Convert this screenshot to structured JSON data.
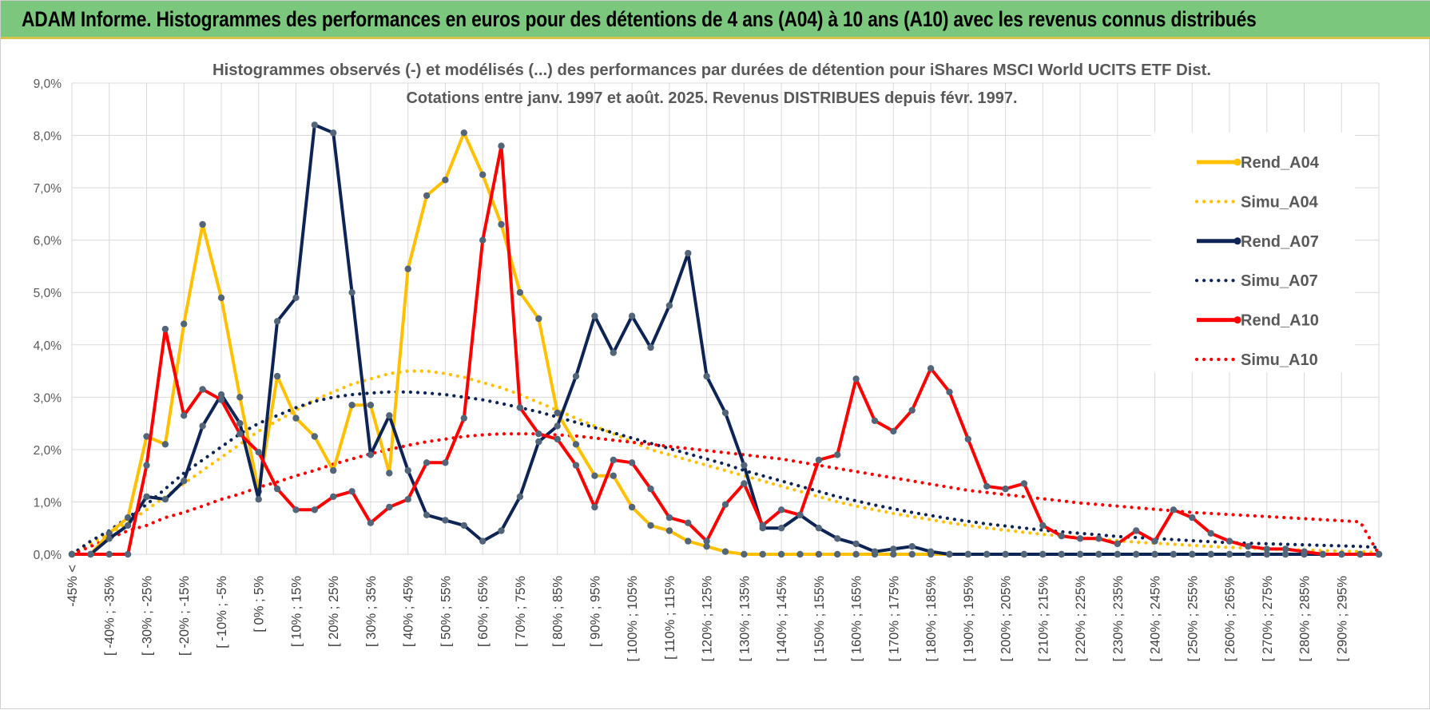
{
  "banner": {
    "title": "ADAM Informe. Histogrammes des performances en euros pour des détentions de 4 ans (A04) à 10 ans (A10) avec les revenus connus distribués"
  },
  "colors": {
    "banner_bg": "#7cc77e",
    "A04": "#ffc000",
    "A07": "#0d2454",
    "A10": "#ff0000",
    "grid": "#d9d9d9"
  },
  "chart_data": {
    "type": "line",
    "title": "Histogrammes observés (-) et modélisés (...) des performances par durées de détention pour iShares MSCI World UCITS ETF Dist.",
    "subtitle": "Cotations entre janv. 1997 et août. 2025. Revenus DISTRIBUES depuis févr. 1997.",
    "xlabel": "",
    "ylabel": "",
    "ylim": [
      0,
      9
    ],
    "yticks": [
      "0,0%",
      "1,0%",
      "2,0%",
      "3,0%",
      "4,0%",
      "5,0%",
      "6,0%",
      "7,0%",
      "8,0%",
      "9,0%"
    ],
    "grid": true,
    "legend_position": "right",
    "x_tick_labels": [
      "-45% <",
      "[ -40% ; -35%",
      "[ -30% ; -25%",
      "[ -20% ; -15%",
      "[ -10% ; -5%",
      "[ 0% ; 5%",
      "[ 10% ; 15%",
      "[ 20% ; 25%",
      "[ 30% ; 35%",
      "[ 40% ; 45%",
      "[ 50% ; 55%",
      "[ 60% ; 65%",
      "[ 70% ; 75%",
      "[ 80% ; 85%",
      "[ 90% ; 95%",
      "[ 100% ; 105%",
      "[ 110% ; 115%",
      "[ 120% ; 125%",
      "[ 130% ; 135%",
      "[ 140% ; 145%",
      "[ 150% ; 155%",
      "[ 160% ; 165%",
      "[ 170% ; 175%",
      "[ 180% ; 185%",
      "[ 190% ; 195%",
      "[ 200% ; 205%",
      "[ 210% ; 215%",
      "[ 220% ; 225%",
      "[ 230% ; 235%",
      "[ 240% ; 245%",
      "[ 250% ; 255%",
      "[ 260% ; 265%",
      "[ 270% ; 275%",
      "[ 280% ; 285%",
      "[ 290% ; 295%"
    ],
    "series": [
      {
        "name": "Rend_A04",
        "style": "solid",
        "color": "#ffc000",
        "values": [
          0.0,
          0.0,
          0.4,
          0.7,
          2.25,
          2.1,
          4.4,
          6.3,
          4.9,
          3.0,
          1.2,
          3.4,
          2.6,
          2.25,
          1.6,
          2.85,
          2.85,
          1.55,
          5.45,
          6.85,
          7.15,
          8.05,
          7.25,
          6.3,
          5.0,
          4.5,
          2.7,
          2.1,
          1.5,
          1.5,
          0.9,
          0.55,
          0.45,
          0.25,
          0.15,
          0.05,
          0,
          0,
          0,
          0,
          0,
          0,
          0,
          0,
          0,
          0,
          0,
          0,
          0,
          0,
          0,
          0,
          0,
          0,
          0,
          0,
          0,
          0,
          0,
          0,
          0,
          0,
          0,
          0,
          0,
          0,
          0,
          0,
          0,
          0,
          0
        ]
      },
      {
        "name": "Simu_A04",
        "style": "dotted",
        "color": "#ffc000",
        "values": [
          0.0,
          0.2,
          0.4,
          0.6,
          0.85,
          1.1,
          1.35,
          1.6,
          1.85,
          2.1,
          2.35,
          2.55,
          2.75,
          2.95,
          3.1,
          3.25,
          3.35,
          3.45,
          3.5,
          3.5,
          3.45,
          3.38,
          3.28,
          3.18,
          3.05,
          2.9,
          2.75,
          2.6,
          2.45,
          2.3,
          2.15,
          2.0,
          1.9,
          1.8,
          1.7,
          1.6,
          1.5,
          1.4,
          1.3,
          1.2,
          1.1,
          1.0,
          0.92,
          0.85,
          0.78,
          0.72,
          0.66,
          0.6,
          0.55,
          0.5,
          0.46,
          0.42,
          0.38,
          0.35,
          0.32,
          0.29,
          0.26,
          0.23,
          0.21,
          0.19,
          0.17,
          0.15,
          0.13,
          0.12,
          0.1,
          0.09,
          0.08,
          0.07,
          0.06,
          0.05,
          0.03
        ]
      },
      {
        "name": "Rend_A07",
        "style": "solid",
        "color": "#0d2454",
        "values": [
          0.0,
          0.0,
          0.3,
          0.55,
          1.1,
          1.05,
          1.4,
          2.45,
          3.05,
          2.5,
          1.05,
          4.45,
          4.9,
          8.2,
          8.05,
          5.0,
          1.9,
          2.65,
          1.6,
          0.75,
          0.65,
          0.55,
          0.25,
          0.45,
          1.1,
          2.15,
          2.45,
          3.4,
          4.55,
          3.85,
          4.55,
          3.95,
          4.75,
          5.75,
          3.4,
          2.7,
          1.7,
          0.5,
          0.5,
          0.75,
          0.5,
          0.3,
          0.2,
          0.05,
          0.1,
          0.15,
          0.05,
          0,
          0,
          0,
          0,
          0,
          0,
          0,
          0,
          0,
          0,
          0,
          0,
          0,
          0,
          0,
          0,
          0,
          0,
          0,
          0,
          0,
          0,
          0,
          0
        ]
      },
      {
        "name": "Simu_A07",
        "style": "dotted",
        "color": "#0d2454",
        "values": [
          0.0,
          0.25,
          0.45,
          0.7,
          0.95,
          1.25,
          1.55,
          1.8,
          2.05,
          2.3,
          2.5,
          2.65,
          2.8,
          2.92,
          3.0,
          3.05,
          3.08,
          3.1,
          3.1,
          3.08,
          3.05,
          3.0,
          2.95,
          2.88,
          2.8,
          2.72,
          2.62,
          2.52,
          2.42,
          2.32,
          2.22,
          2.12,
          2.02,
          1.92,
          1.82,
          1.72,
          1.6,
          1.5,
          1.4,
          1.3,
          1.2,
          1.1,
          1.02,
          0.94,
          0.87,
          0.8,
          0.74,
          0.68,
          0.63,
          0.58,
          0.54,
          0.5,
          0.46,
          0.43,
          0.4,
          0.37,
          0.34,
          0.32,
          0.3,
          0.28,
          0.26,
          0.24,
          0.22,
          0.21,
          0.2,
          0.19,
          0.18,
          0.17,
          0.16,
          0.15,
          0.13
        ]
      },
      {
        "name": "Rend_A10",
        "style": "solid",
        "color": "#ff0000",
        "values": [
          0.0,
          0.0,
          0.0,
          0.0,
          1.7,
          4.3,
          2.65,
          3.15,
          2.95,
          2.3,
          1.95,
          1.25,
          0.85,
          0.85,
          1.1,
          1.2,
          0.6,
          0.9,
          1.05,
          1.75,
          1.75,
          2.6,
          6.0,
          7.8,
          2.8,
          2.3,
          2.2,
          1.7,
          0.9,
          1.8,
          1.75,
          1.25,
          0.7,
          0.6,
          0.25,
          0.95,
          1.35,
          0.55,
          0.85,
          0.75,
          1.8,
          1.9,
          3.35,
          2.55,
          2.35,
          2.75,
          3.55,
          3.1,
          2.2,
          1.3,
          1.25,
          1.35,
          0.55,
          0.35,
          0.3,
          0.3,
          0.2,
          0.45,
          0.25,
          0.85,
          0.7,
          0.4,
          0.25,
          0.15,
          0.1,
          0.1,
          0.05,
          0.0,
          0.0,
          0.0,
          0.0
        ]
      },
      {
        "name": "Simu_A10",
        "style": "dotted",
        "color": "#ff0000",
        "values": [
          0.0,
          0.15,
          0.3,
          0.45,
          0.55,
          0.7,
          0.8,
          0.92,
          1.05,
          1.15,
          1.28,
          1.38,
          1.5,
          1.6,
          1.72,
          1.82,
          1.92,
          2.0,
          2.08,
          2.15,
          2.2,
          2.25,
          2.28,
          2.3,
          2.3,
          2.3,
          2.28,
          2.26,
          2.22,
          2.18,
          2.14,
          2.1,
          2.06,
          2.02,
          1.98,
          1.94,
          1.9,
          1.86,
          1.82,
          1.76,
          1.7,
          1.64,
          1.58,
          1.52,
          1.46,
          1.4,
          1.34,
          1.28,
          1.22,
          1.18,
          1.14,
          1.1,
          1.06,
          1.02,
          0.98,
          0.95,
          0.92,
          0.89,
          0.86,
          0.83,
          0.8,
          0.78,
          0.76,
          0.74,
          0.72,
          0.7,
          0.68,
          0.66,
          0.64,
          0.62,
          0.0
        ]
      }
    ]
  }
}
